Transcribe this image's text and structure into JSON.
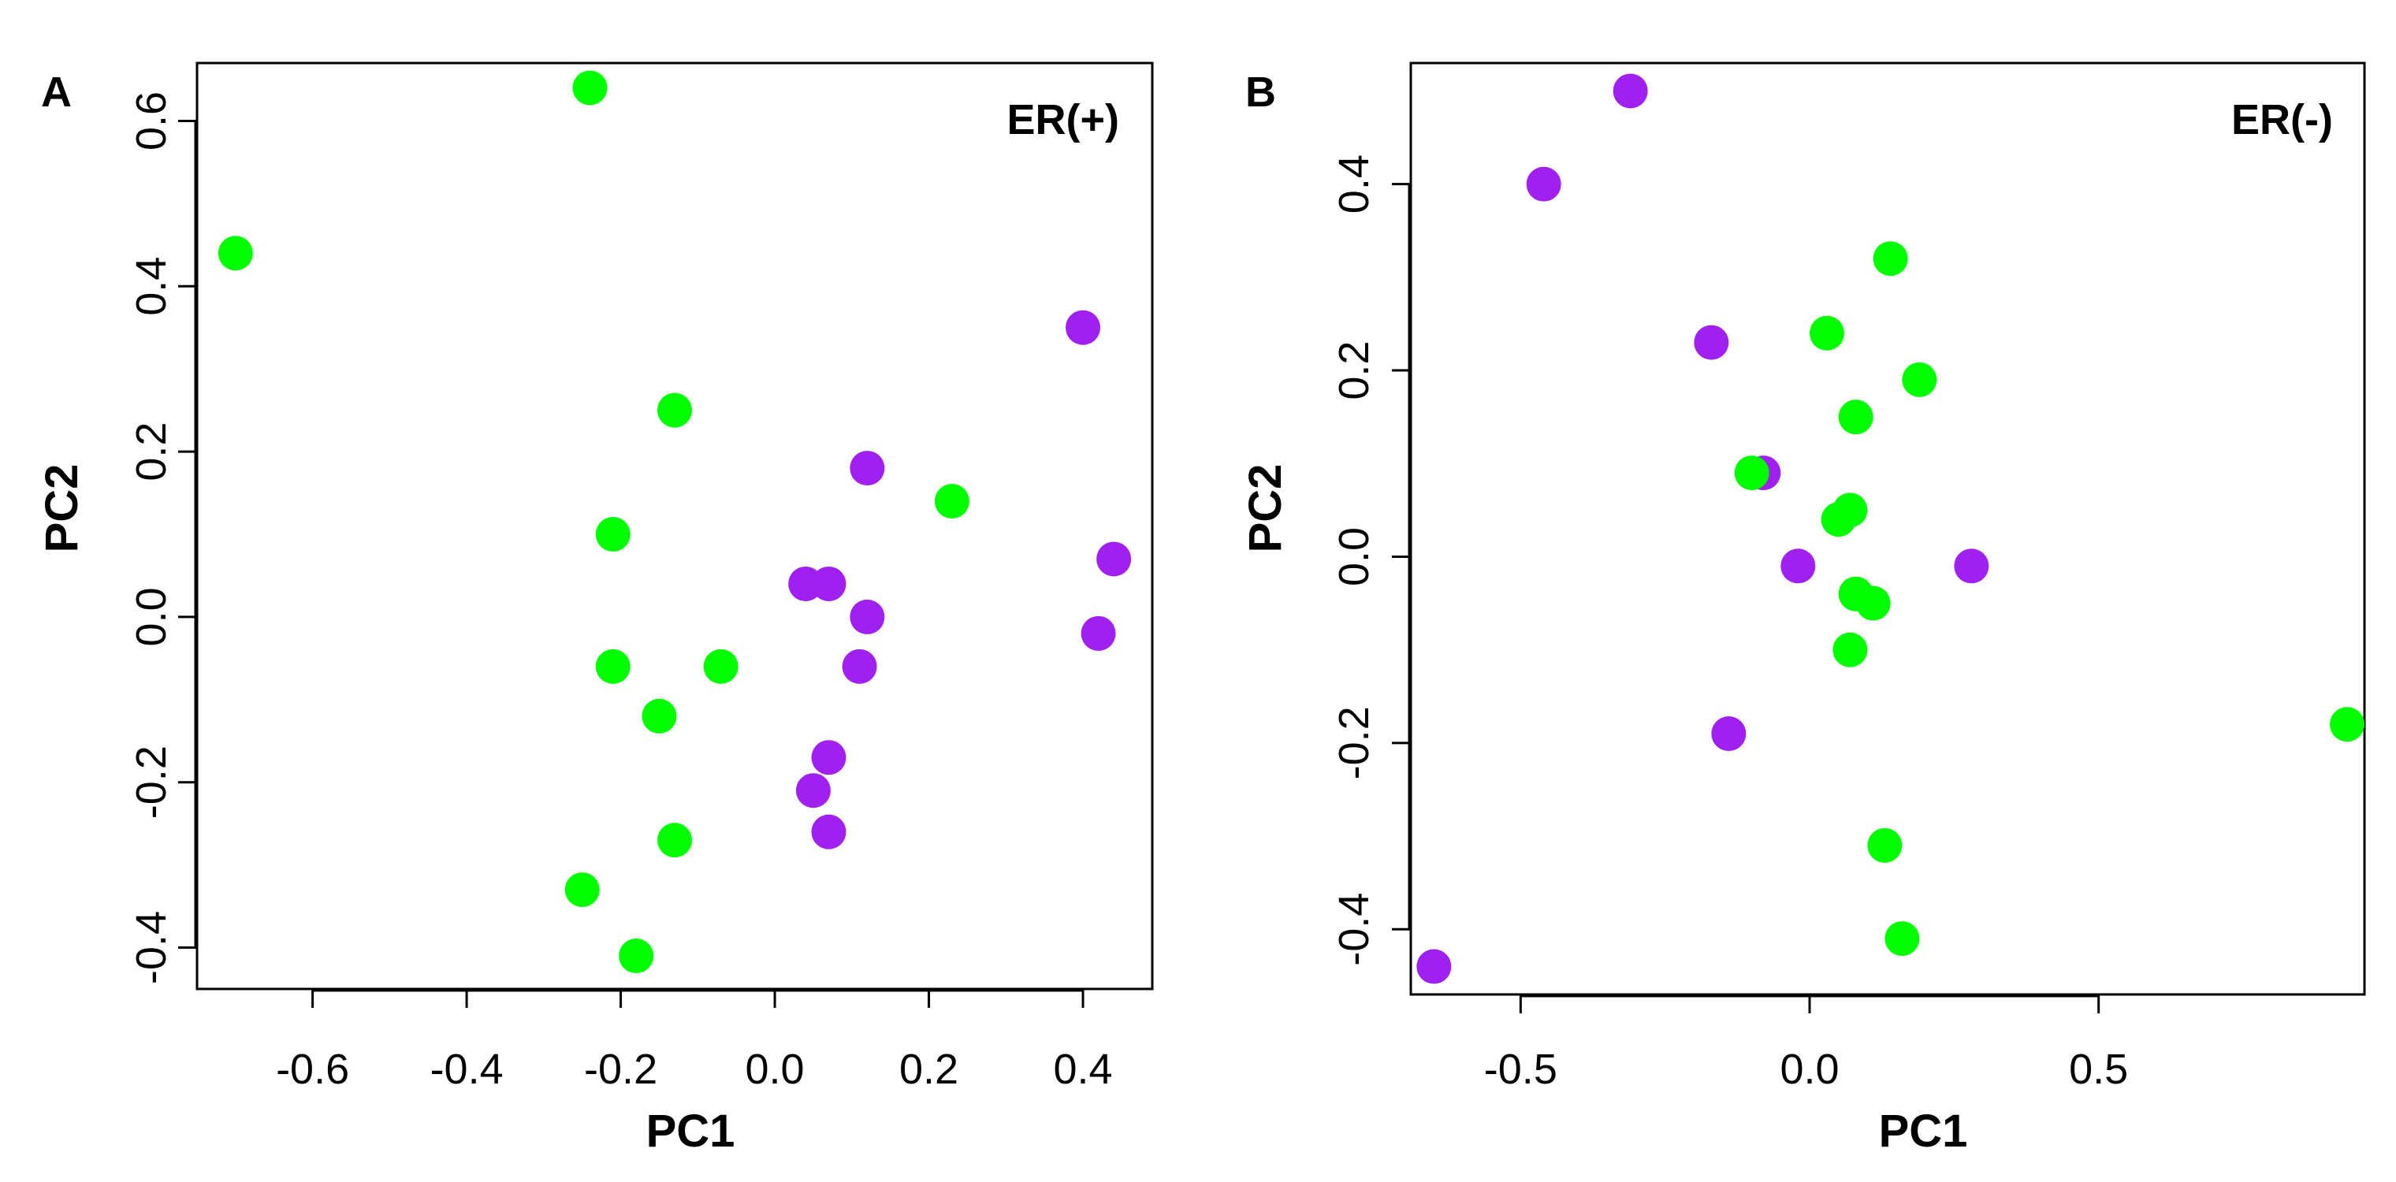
{
  "figure": {
    "colors": {
      "green": "#00ff00",
      "purple": "#a020f0"
    }
  },
  "chart_data": [
    {
      "type": "scatter",
      "panel_label": "A",
      "annotation": "ER(+)",
      "xlabel": "PC1",
      "ylabel": "PC2",
      "xlim": [
        -0.75,
        0.49
      ],
      "ylim": [
        -0.45,
        0.67
      ],
      "xticks": [
        -0.6,
        -0.4,
        -0.2,
        0.0,
        0.2,
        0.4
      ],
      "xtick_labels": [
        "-0.6",
        "-0.4",
        "-0.2",
        "0.0",
        "0.2",
        "0.4"
      ],
      "yticks": [
        -0.4,
        -0.2,
        0.0,
        0.2,
        0.4,
        0.6
      ],
      "ytick_labels": [
        "-0.4",
        "-0.2",
        "0.0",
        "0.2",
        "0.4",
        "0.6"
      ],
      "series": [
        {
          "name": "green",
          "color": "#00ff00",
          "points": [
            [
              -0.7,
              0.44
            ],
            [
              -0.24,
              0.64
            ],
            [
              -0.13,
              0.25
            ],
            [
              -0.21,
              0.1
            ],
            [
              -0.21,
              -0.06
            ],
            [
              -0.07,
              -0.06
            ],
            [
              -0.15,
              -0.12
            ],
            [
              -0.13,
              -0.27
            ],
            [
              -0.25,
              -0.33
            ],
            [
              -0.18,
              -0.41
            ],
            [
              0.23,
              0.14
            ]
          ]
        },
        {
          "name": "purple",
          "color": "#a020f0",
          "points": [
            [
              0.4,
              0.35
            ],
            [
              0.12,
              0.18
            ],
            [
              0.44,
              0.07
            ],
            [
              0.04,
              0.04
            ],
            [
              0.07,
              0.04
            ],
            [
              0.12,
              0.0
            ],
            [
              0.42,
              -0.02
            ],
            [
              0.11,
              -0.06
            ],
            [
              0.07,
              -0.17
            ],
            [
              0.05,
              -0.21
            ],
            [
              0.07,
              -0.26
            ]
          ]
        }
      ]
    },
    {
      "type": "scatter",
      "panel_label": "B",
      "annotation": "ER(-)",
      "xlabel": "PC1",
      "ylabel": "PC2",
      "xlim": [
        -0.69,
        0.96
      ],
      "ylim": [
        -0.47,
        0.53
      ],
      "xticks": [
        -0.5,
        0.0,
        0.5
      ],
      "xtick_labels": [
        "-0.5",
        "0.0",
        "0.5"
      ],
      "yticks": [
        -0.4,
        -0.2,
        0.0,
        0.2,
        0.4
      ],
      "ytick_labels": [
        "-0.4",
        "-0.2",
        "0.0",
        "0.2",
        "0.4"
      ],
      "series": [
        {
          "name": "purple",
          "color": "#a020f0",
          "points": [
            [
              -0.31,
              0.5
            ],
            [
              -0.46,
              0.4
            ],
            [
              -0.17,
              0.23
            ],
            [
              -0.08,
              0.09
            ],
            [
              -0.02,
              -0.01
            ],
            [
              0.28,
              -0.01
            ],
            [
              -0.14,
              -0.19
            ],
            [
              -0.65,
              -0.44
            ]
          ]
        },
        {
          "name": "green",
          "color": "#00ff00",
          "points": [
            [
              0.14,
              0.32
            ],
            [
              0.03,
              0.24
            ],
            [
              0.19,
              0.19
            ],
            [
              0.08,
              0.15
            ],
            [
              -0.1,
              0.09
            ],
            [
              0.07,
              0.05
            ],
            [
              0.05,
              0.04
            ],
            [
              0.08,
              -0.04
            ],
            [
              0.11,
              -0.05
            ],
            [
              0.07,
              -0.1
            ],
            [
              0.93,
              -0.18
            ],
            [
              0.13,
              -0.31
            ],
            [
              0.16,
              -0.41
            ]
          ]
        }
      ]
    }
  ]
}
